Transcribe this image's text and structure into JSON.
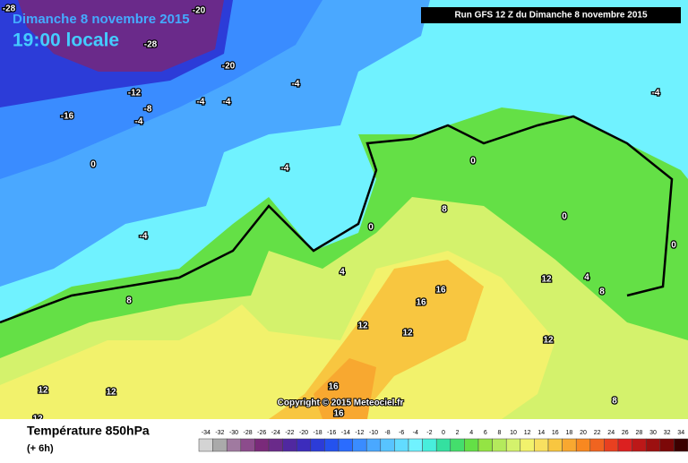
{
  "header": {
    "date": "Dimanche 8 novembre 2015",
    "time": "19:00 locale",
    "run": "Run GFS 12 Z du Dimanche 8 novembre 2015"
  },
  "copyright": "Copyright © 2015 Meteociel.fr",
  "footer": {
    "title": "Température 850hPa",
    "step": "(+ 6h)"
  },
  "contour_labels": [
    -28,
    -20,
    -28,
    -20,
    -12,
    -16,
    -8,
    -4,
    -4,
    -4,
    -4,
    -4,
    -4,
    0,
    0,
    4,
    8,
    8,
    16,
    16,
    12,
    12,
    12,
    12,
    4,
    8,
    0,
    -4,
    0,
    12,
    12,
    12,
    16,
    16,
    8,
    0
  ],
  "colorbar": {
    "ticks": [
      -34,
      -32,
      -30,
      -28,
      -26,
      -24,
      -22,
      -20,
      -18,
      -16,
      -14,
      -12,
      -10,
      -8,
      -6,
      -4,
      -2,
      0,
      2,
      4,
      6,
      8,
      10,
      12,
      14,
      16,
      18,
      20,
      22,
      24,
      26,
      28,
      30,
      32,
      34
    ],
    "colors": [
      "#d4d4d4",
      "#aaaaaa",
      "#a07aa0",
      "#8c4c8c",
      "#7a2a7a",
      "#6a2a8a",
      "#5028a0",
      "#3c2cbc",
      "#2c3cd8",
      "#2452ee",
      "#2a6cff",
      "#3a8cff",
      "#4aa8ff",
      "#58c4ff",
      "#62dcff",
      "#70f2ff",
      "#48eedc",
      "#34e0a0",
      "#44de6c",
      "#64e046",
      "#94e444",
      "#b4ea5c",
      "#d4f26c",
      "#f2f26c",
      "#f8e060",
      "#f8c640",
      "#f8a830",
      "#f88820",
      "#f06420",
      "#e84020",
      "#dc2020",
      "#bc1818",
      "#9c1010",
      "#7c0808",
      "#3c0000"
    ]
  }
}
